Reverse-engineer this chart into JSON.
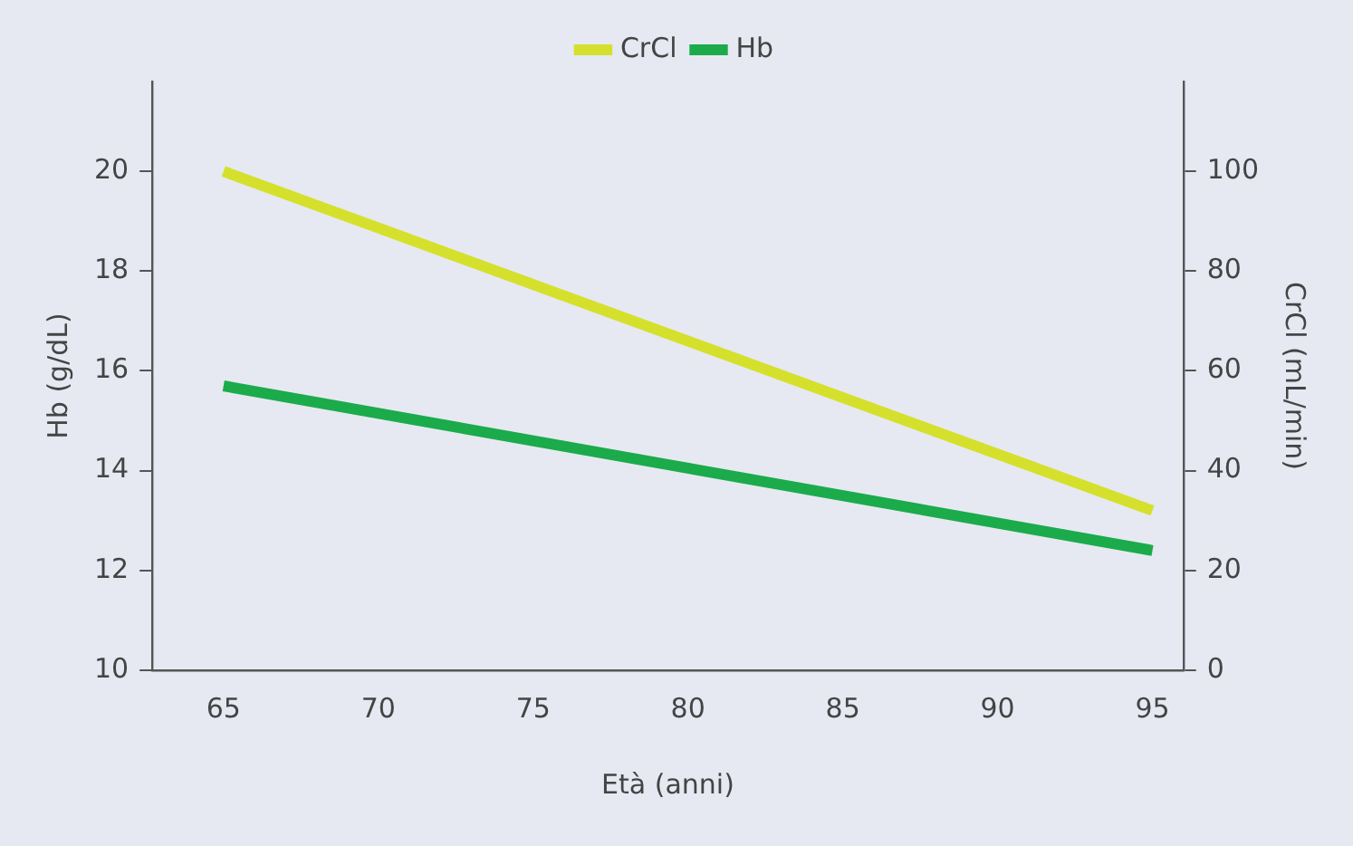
{
  "chart_data": {
    "type": "line",
    "xlabel": "Età (anni)",
    "ylabel": "Hb (g/dL)",
    "y2label": "CrCl (mL/min)",
    "x": [
      65,
      95
    ],
    "series": [
      {
        "name": "CrCl",
        "color": "#d5e02c",
        "values": [
          100,
          32
        ],
        "axis": "y2"
      },
      {
        "name": "Hb",
        "color": "#1bab4b",
        "values": [
          15.7,
          12.4
        ]
      }
    ],
    "xlim": [
      62.7,
      96
    ],
    "xticks": [
      65,
      70,
      75,
      80,
      85,
      90,
      95
    ],
    "ylim": [
      10,
      21.8
    ],
    "yticks": [
      10,
      12,
      14,
      16,
      18,
      20
    ],
    "y2lim": [
      0,
      118
    ],
    "y2ticks": [
      0,
      20,
      40,
      60,
      80,
      100
    ],
    "legend": "top",
    "grid": false,
    "marker": "none",
    "line_style": "solid"
  }
}
